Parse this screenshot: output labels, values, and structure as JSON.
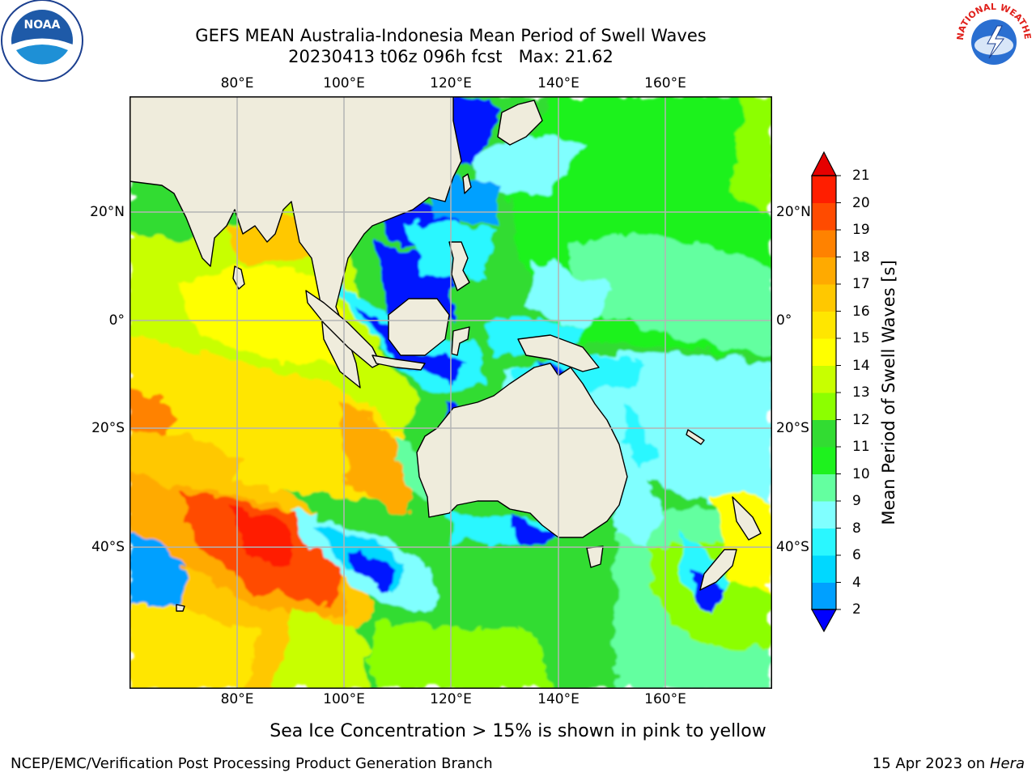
{
  "header": {
    "title": "GEFS MEAN Australia-Indonesia Mean Period of Swell Waves",
    "subtitle": "20230413 t06z 096h fcst   Max: 21.62"
  },
  "map": {
    "lon_ticks": [
      "80°E",
      "100°E",
      "120°E",
      "140°E",
      "160°E"
    ],
    "lat_ticks": [
      "20°N",
      "0°",
      "20°S",
      "40°S"
    ],
    "extent": {
      "lon_min": 60,
      "lon_max": 180,
      "lat_min": -68,
      "lat_max": 42
    },
    "land_color": "#efecdc",
    "grid_color": "#b4b4b4"
  },
  "colorbar": {
    "label": "Mean Period of Swell Waves [s]",
    "levels": [
      "2",
      "4",
      "6",
      "8",
      "9",
      "10",
      "11",
      "12",
      "13",
      "14",
      "15",
      "16",
      "17",
      "18",
      "19",
      "20",
      "21"
    ],
    "colors": [
      "#0014ff",
      "#00a0ff",
      "#00d8ff",
      "#2af7ff",
      "#80ffff",
      "#64ffa0",
      "#1ef21e",
      "#32dc32",
      "#8cff00",
      "#c8ff00",
      "#ffff00",
      "#ffe600",
      "#ffc800",
      "#ffaa00",
      "#ff8200",
      "#ff4b00",
      "#ff1e00",
      "#e60000"
    ],
    "under_color": "#0000ff",
    "over_color": "#e60000"
  },
  "footer": {
    "note": "Sea Ice Concentration > 15% is shown in pink to yellow",
    "left": "NCEP/EMC/Verification Post Processing Product Generation Branch",
    "right_date": "15 Apr 2023 on",
    "right_machine": "Hera"
  },
  "logos": {
    "noaa_text": "NOAA",
    "nws_text": "NATIONAL WEATHER SERVICE"
  }
}
